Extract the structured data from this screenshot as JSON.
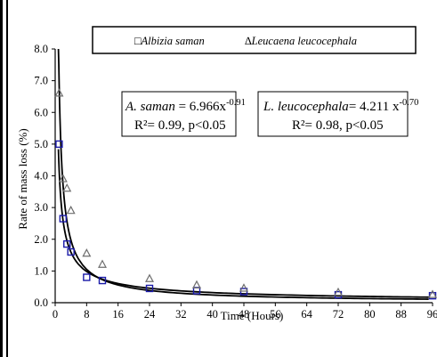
{
  "chart_data": {
    "type": "scatter",
    "xlabel": "Time (Hours)",
    "ylabel": "Rate of mass loss (%)",
    "xlim": [
      0,
      96
    ],
    "ylim": [
      0,
      8
    ],
    "xticks": [
      0,
      8,
      16,
      24,
      32,
      40,
      48,
      56,
      64,
      72,
      80,
      88,
      96
    ],
    "xtick_labels": [
      "0",
      "8",
      "16",
      "24",
      "32",
      "40",
      "48",
      "56",
      "64",
      "72",
      "80",
      "88",
      "96"
    ],
    "yticks": [
      0,
      1,
      2,
      3,
      4,
      5,
      6,
      7,
      8
    ],
    "ytick_labels": [
      "0.0",
      "1.0",
      "2.0",
      "3.0",
      "4.0",
      "5.0",
      "6.0",
      "7.0",
      "8.0"
    ],
    "grid": false,
    "legend_placement": "top",
    "series": [
      {
        "name": "Albizia saman",
        "legend_label": "□Albizia saman",
        "marker": "square",
        "color": "#1a1aa8",
        "x": [
          1,
          2,
          3,
          4,
          8,
          12,
          24,
          36,
          48,
          72,
          96
        ],
        "y": [
          5.0,
          2.65,
          1.85,
          1.6,
          0.8,
          0.7,
          0.45,
          0.38,
          0.35,
          0.25,
          0.22
        ],
        "fit": {
          "a": 6.966,
          "b": -0.91
        }
      },
      {
        "name": "Leucaena leucocephala",
        "legend_label": "∆Leucaena leucocephala",
        "marker": "triangle",
        "color": "#6e6e6e",
        "x": [
          1,
          2,
          3,
          4,
          8,
          12,
          24,
          36,
          48,
          72,
          96
        ],
        "y": [
          6.6,
          3.9,
          3.6,
          2.9,
          1.55,
          1.2,
          0.75,
          0.55,
          0.45,
          0.32,
          0.25
        ],
        "fit": {
          "a": 4.211,
          "b": -0.7
        }
      }
    ],
    "annotations": [
      {
        "id": "albizia",
        "prefix": "A. saman",
        "formula": " = 6.966x",
        "exponent": "-0.91",
        "stats": "R²= 0.99, p<0.05"
      },
      {
        "id": "leucaena",
        "prefix": "L. leucocephala",
        "formula": "= 4.211 x",
        "exponent": "-0.70",
        "stats": "R²= 0.98, p<0.05"
      }
    ]
  }
}
